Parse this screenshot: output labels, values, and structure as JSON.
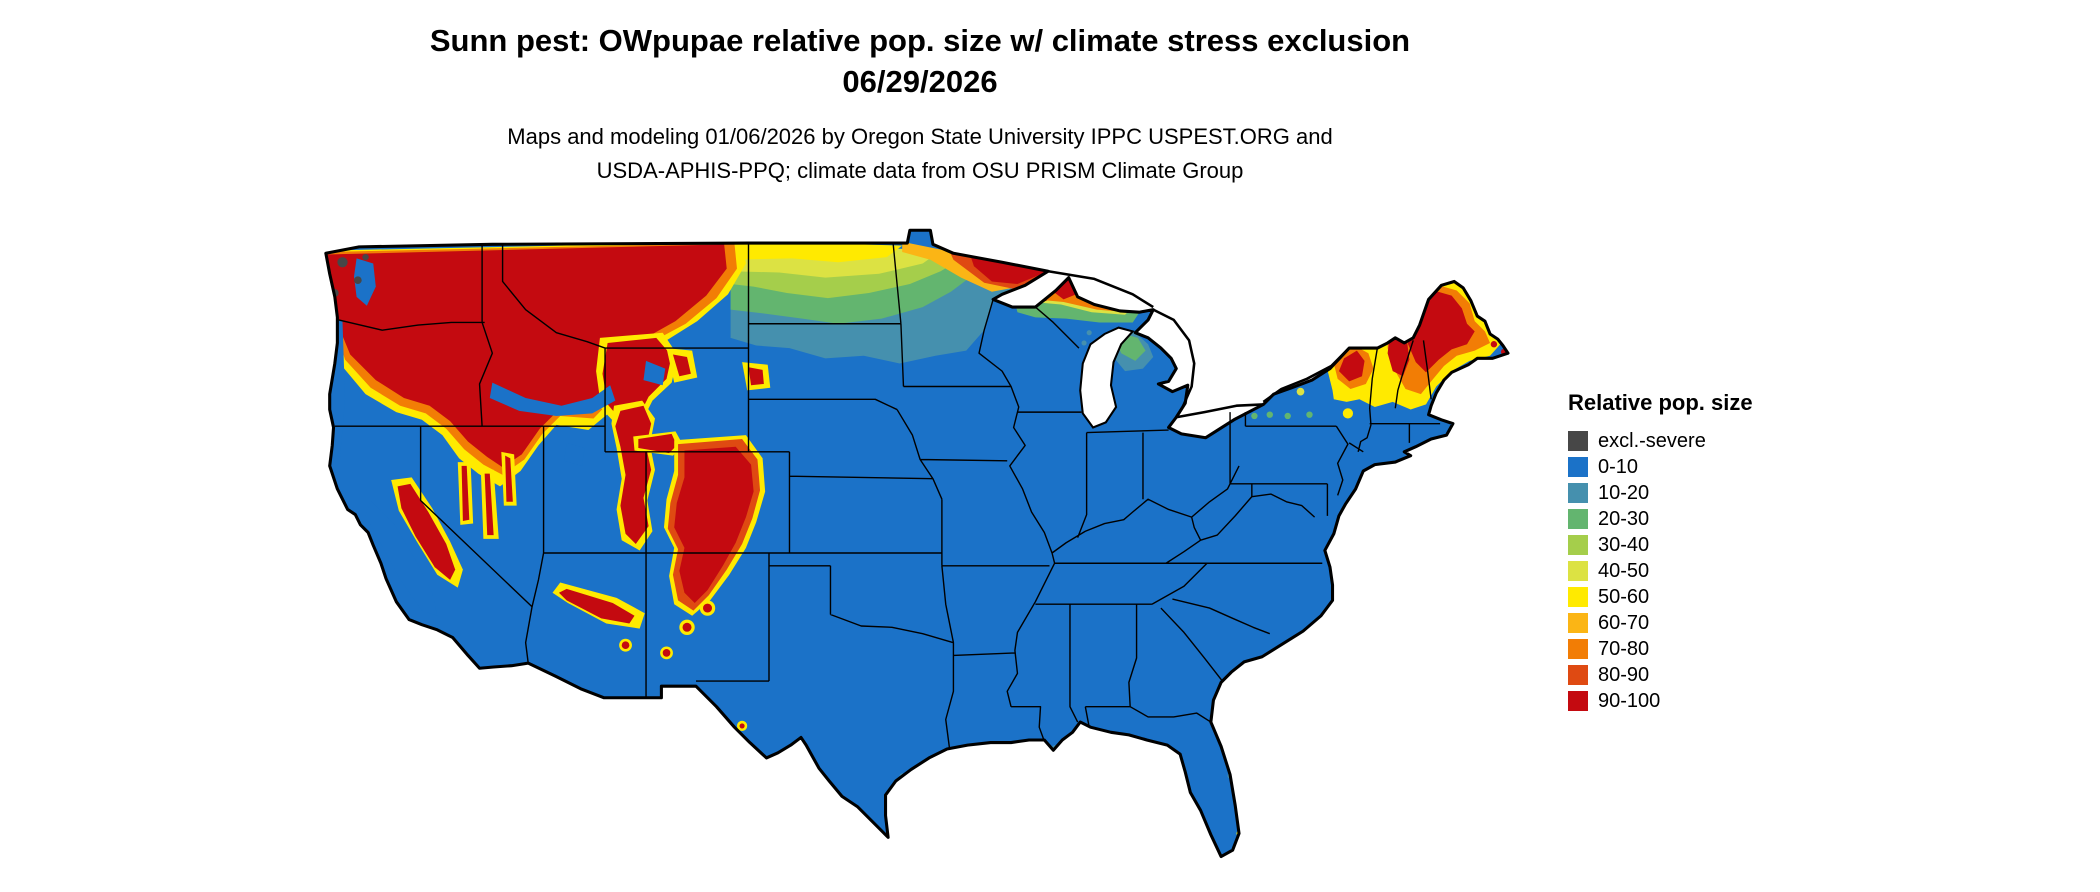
{
  "header": {
    "title_line1": "Sunn pest: OWpupae relative pop. size w/ climate stress exclusion",
    "title_line2": "06/29/2026",
    "subtitle_line1": "Maps and modeling 01/06/2026 by Oregon State University IPPC USPEST.ORG and",
    "subtitle_line2": "USDA-APHIS-PPQ; climate data from OSU PRISM Climate Group"
  },
  "legend": {
    "title": "Relative pop. size",
    "items": [
      {
        "label": "excl.-severe",
        "color": "#474747"
      },
      {
        "label": "0-10",
        "color": "#1B72C8"
      },
      {
        "label": "10-20",
        "color": "#4590AE"
      },
      {
        "label": "20-30",
        "color": "#63B56F"
      },
      {
        "label": "30-40",
        "color": "#A5CE4B"
      },
      {
        "label": "40-50",
        "color": "#DCE243"
      },
      {
        "label": "50-60",
        "color": "#FFEA00"
      },
      {
        "label": "60-70",
        "color": "#FBB515"
      },
      {
        "label": "70-80",
        "color": "#F27D05"
      },
      {
        "label": "80-90",
        "color": "#DF4A12"
      },
      {
        "label": "90-100",
        "color": "#C40A10"
      }
    ]
  },
  "map": {
    "kind": "choropleth-raster",
    "area": "continental-united-states",
    "base_class_label": "0-10",
    "outline_color": "#000000",
    "background_color": "#ffffff"
  }
}
